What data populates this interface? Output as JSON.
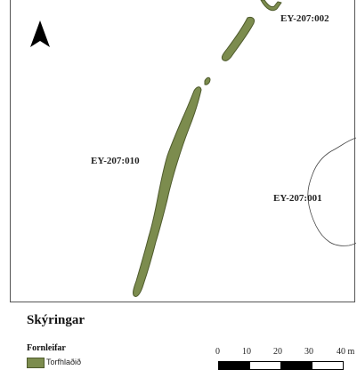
{
  "map": {
    "sites": [
      {
        "id": "EY-207:002"
      },
      {
        "id": "EY-207:010"
      },
      {
        "id": "EY-207:001"
      }
    ],
    "colors": {
      "feature_fill": "#7c8c4e",
      "feature_stroke": "#4e5a2c",
      "outline": "#444444",
      "north_arrow": "#000000"
    },
    "north_arrow_icon": "north-arrow-icon"
  },
  "legend": {
    "title": "Skýringar",
    "group_label": "Fornleifar",
    "item_label": "Torfhlaðið"
  },
  "scale": {
    "ticks": [
      "0",
      "10",
      "20",
      "30",
      "40 m"
    ]
  }
}
